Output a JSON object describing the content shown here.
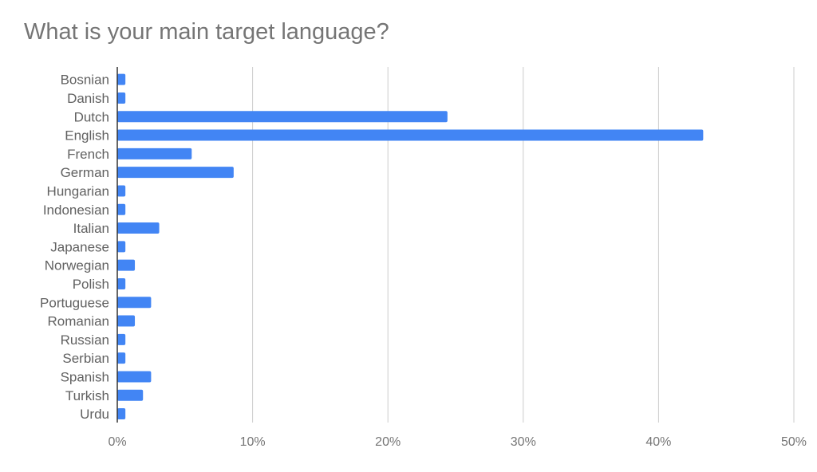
{
  "chart_data": {
    "type": "bar",
    "orientation": "horizontal",
    "title": "What is your main target language?",
    "categories": [
      "Bosnian",
      "Danish",
      "Dutch",
      "English",
      "French",
      "German",
      "Hungarian",
      "Indonesian",
      "Italian",
      "Japanese",
      "Norwegian",
      "Polish",
      "Portuguese",
      "Romanian",
      "Russian",
      "Serbian",
      "Spanish",
      "Turkish",
      "Urdu"
    ],
    "values": [
      0.6,
      0.6,
      24.4,
      43.3,
      5.5,
      8.6,
      0.6,
      0.6,
      3.1,
      0.6,
      1.3,
      0.6,
      2.5,
      1.3,
      0.6,
      0.6,
      2.5,
      1.9,
      0.6
    ],
    "xlim": [
      0,
      50
    ],
    "xticks": [
      "0%",
      "10%",
      "20%",
      "30%",
      "40%",
      "50%"
    ],
    "xtick_values": [
      0,
      10,
      20,
      30,
      40,
      50
    ],
    "bar_color": "#4285f4",
    "grid": true,
    "legend": "none"
  }
}
